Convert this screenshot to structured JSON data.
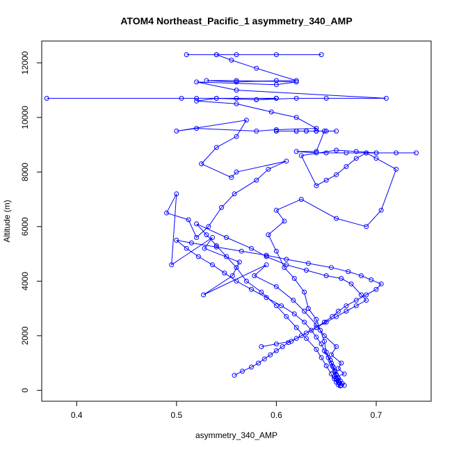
{
  "chart_data": {
    "type": "line",
    "title": "ATOM4 Northeast_Pacific_1 asymmetry_340_AMP",
    "xlabel": "asymmetry_340_AMP",
    "ylabel": "Altitude (m)",
    "xlim": [
      0.365,
      0.755
    ],
    "ylim": [
      -400,
      12800
    ],
    "xticks": [
      0.4,
      0.5,
      0.6,
      0.7
    ],
    "xtick_labels": [
      "0.4",
      "0.5",
      "0.6",
      "0.7"
    ],
    "yticks": [
      0,
      2000,
      4000,
      6000,
      8000,
      10000,
      12000
    ],
    "ytick_labels": [
      "0",
      "2000",
      "4000",
      "6000",
      "8000",
      "10000",
      "12000"
    ],
    "grid": false,
    "legend": "none",
    "color": "#0000ff",
    "marker": "open-circle",
    "series": [
      {
        "x": [
          0.665,
          0.662,
          0.66,
          0.658,
          0.668,
          0.662,
          0.665,
          0.655,
          0.66,
          0.648,
          0.64,
          0.628,
          0.617,
          0.6,
          0.578,
          0.59,
          0.527,
          0.556,
          0.563,
          0.528,
          0.536,
          0.495,
          0.5,
          0.49,
          0.512,
          0.52,
          0.532,
          0.545,
          0.558,
          0.58,
          0.592,
          0.61,
          0.56,
          0.555,
          0.525,
          0.54,
          0.56,
          0.57,
          0.5,
          0.52,
          0.58,
          0.6,
          0.64,
          0.62,
          0.595,
          0.56,
          0.52,
          0.54,
          0.58,
          0.6,
          0.56,
          0.505,
          0.52,
          0.6,
          0.54,
          0.37,
          0.6,
          0.58,
          0.62,
          0.65,
          0.71,
          0.56,
          0.52,
          0.6,
          0.62,
          0.56,
          0.53,
          0.56,
          0.6,
          0.62,
          0.58,
          0.555,
          0.54,
          0.51,
          0.56,
          0.54,
          0.6,
          0.645
        ],
        "y": [
          180,
          300,
          400,
          500,
          600,
          800,
          1000,
          1300,
          1600,
          2000,
          2400,
          2900,
          3300,
          3800,
          4200,
          4600,
          3500,
          4200,
          4700,
          5200,
          5600,
          4600,
          7200,
          6500,
          6250,
          5600,
          6000,
          6700,
          7200,
          7700,
          8100,
          8400,
          8000,
          7800,
          8300,
          8900,
          9300,
          9900,
          9500,
          9600,
          9500,
          9550,
          9600,
          10000,
          10200,
          10500,
          10600,
          10700,
          10650,
          10700,
          10700,
          10700,
          10700,
          10700,
          10700,
          10700,
          10700,
          10650,
          10700,
          10700,
          10700,
          11000,
          11300,
          11200,
          11300,
          11350,
          11350,
          11300,
          11350,
          11350,
          11800,
          12100,
          12300,
          12300,
          12300,
          12300,
          12300,
          12300
        ]
      },
      {
        "x": [
          0.668,
          0.666,
          0.664,
          0.662,
          0.66,
          0.658,
          0.656,
          0.654,
          0.65,
          0.648,
          0.644,
          0.64,
          0.632,
          0.628,
          0.618,
          0.608,
          0.6,
          0.592,
          0.608,
          0.6,
          0.625,
          0.66,
          0.69,
          0.705,
          0.72,
          0.7,
          0.69,
          0.68,
          0.67,
          0.66,
          0.65,
          0.64,
          0.625,
          0.66,
          0.68,
          0.7,
          0.72,
          0.74,
          0.7,
          0.69,
          0.67,
          0.65,
          0.64,
          0.62,
          0.64,
          0.648,
          0.63,
          0.62,
          0.6,
          0.62,
          0.63,
          0.64,
          0.65,
          0.66,
          0.64,
          0.62,
          0.6,
          0.64
        ],
        "y": [
          180,
          250,
          350,
          450,
          550,
          700,
          900,
          1100,
          1400,
          1800,
          2200,
          2600,
          3000,
          3600,
          4100,
          4500,
          5100,
          5700,
          6200,
          6600,
          7000,
          6300,
          6000,
          6600,
          8100,
          8500,
          8700,
          8500,
          8200,
          7900,
          7700,
          7500,
          8600,
          8800,
          8750,
          8700,
          8700,
          8700,
          8700,
          8700,
          8700,
          8700,
          8700,
          8750,
          8750,
          9500,
          9500,
          9500,
          9500,
          9500,
          9500,
          9500,
          9500,
          9500,
          9500,
          9500,
          9500,
          9500
        ]
      },
      {
        "x": [
          0.662,
          0.66,
          0.658,
          0.655,
          0.65,
          0.645,
          0.64,
          0.63,
          0.62,
          0.61,
          0.6,
          0.585,
          0.57,
          0.56,
          0.55,
          0.54,
          0.53,
          0.52,
          0.55,
          0.575,
          0.59,
          0.61,
          0.63,
          0.65,
          0.665,
          0.675,
          0.685,
          0.69,
          0.68,
          0.67,
          0.66,
          0.65,
          0.64,
          0.625,
          0.615,
          0.6,
          0.585
        ],
        "y": [
          200,
          300,
          420,
          600,
          900,
          1200,
          1500,
          1900,
          2300,
          2700,
          3100,
          3600,
          4000,
          4500,
          4900,
          5300,
          5700,
          6100,
          5600,
          5200,
          4900,
          4600,
          4400,
          4200,
          4100,
          3900,
          3500,
          3300,
          3100,
          2900,
          2700,
          2500,
          2300,
          2000,
          1800,
          1700,
          1600
        ]
      },
      {
        "x": [
          0.664,
          0.663,
          0.662,
          0.661,
          0.66,
          0.659,
          0.657,
          0.655,
          0.652,
          0.648,
          0.645,
          0.64,
          0.635,
          0.628,
          0.618,
          0.605,
          0.59,
          0.575,
          0.56,
          0.548,
          0.536,
          0.522,
          0.51,
          0.5,
          0.515,
          0.54,
          0.565,
          0.59,
          0.61,
          0.632,
          0.655,
          0.672,
          0.685,
          0.695,
          0.705,
          0.7,
          0.69,
          0.68,
          0.67,
          0.662,
          0.656,
          0.648,
          0.64,
          0.63,
          0.62,
          0.612,
          0.606,
          0.6,
          0.594,
          0.588,
          0.582,
          0.575,
          0.566,
          0.558
        ],
        "y": [
          160,
          260,
          360,
          470,
          580,
          700,
          850,
          1000,
          1200,
          1450,
          1700,
          1950,
          2200,
          2500,
          2800,
          3100,
          3400,
          3700,
          4000,
          4300,
          4600,
          4900,
          5200,
          5500,
          5400,
          5250,
          5100,
          4950,
          4800,
          4650,
          4500,
          4350,
          4200,
          4050,
          3900,
          3700,
          3500,
          3300,
          3100,
          2900,
          2700,
          2500,
          2300,
          2100,
          1900,
          1750,
          1600,
          1450,
          1300,
          1150,
          1000,
          850,
          700,
          550
        ]
      }
    ]
  }
}
